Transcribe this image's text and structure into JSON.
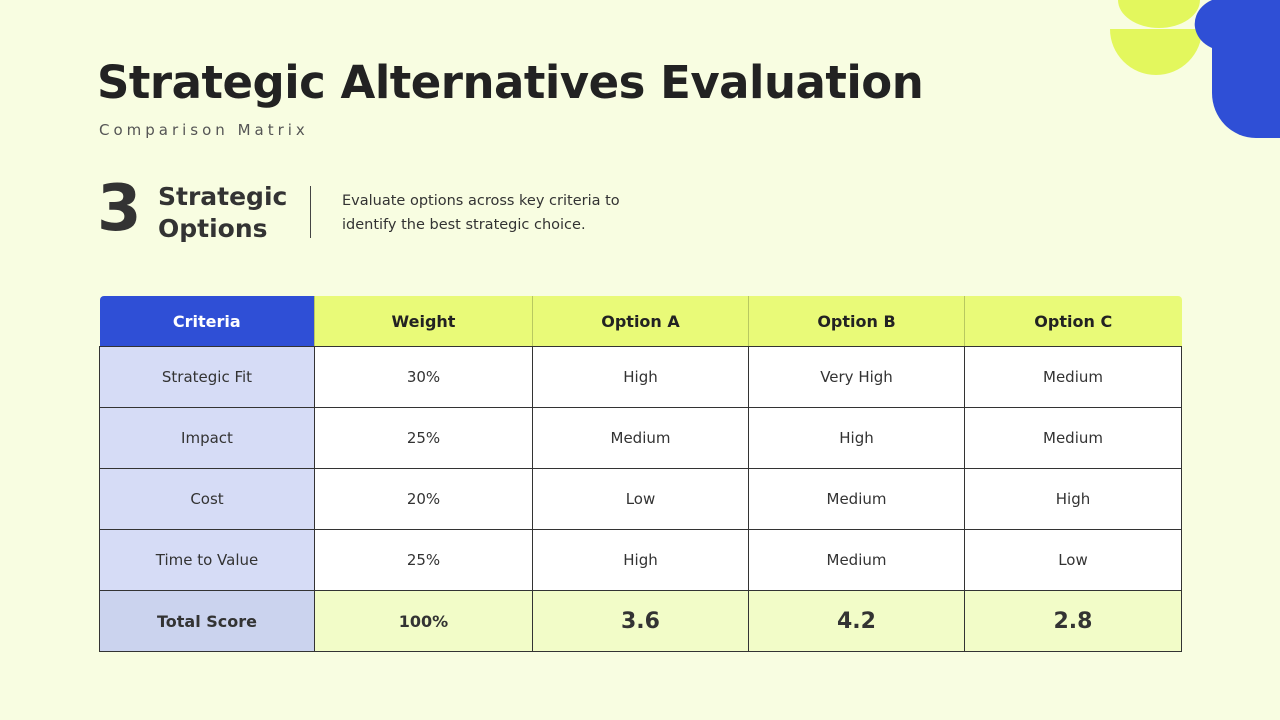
{
  "header": {
    "title": "Strategic Alternatives Evaluation",
    "subtitle": "Comparison Matrix"
  },
  "summary": {
    "number": "3",
    "label": "Strategic Options",
    "description": "Evaluate options across key criteria to identify the best strategic choice."
  },
  "table": {
    "columns": [
      "Criteria",
      "Weight",
      "Option A",
      "Option B",
      "Option C"
    ],
    "rows": [
      [
        "Strategic Fit",
        "30%",
        "High",
        "Very High",
        "Medium"
      ],
      [
        "Impact",
        "25%",
        "Medium",
        "High",
        "Medium"
      ],
      [
        "Cost",
        "20%",
        "Low",
        "Medium",
        "High"
      ],
      [
        "Time to Value",
        "25%",
        "High",
        "Medium",
        "Low"
      ]
    ],
    "total": [
      "Total Score",
      "100%",
      "3.6",
      "4.2",
      "2.8"
    ]
  }
}
